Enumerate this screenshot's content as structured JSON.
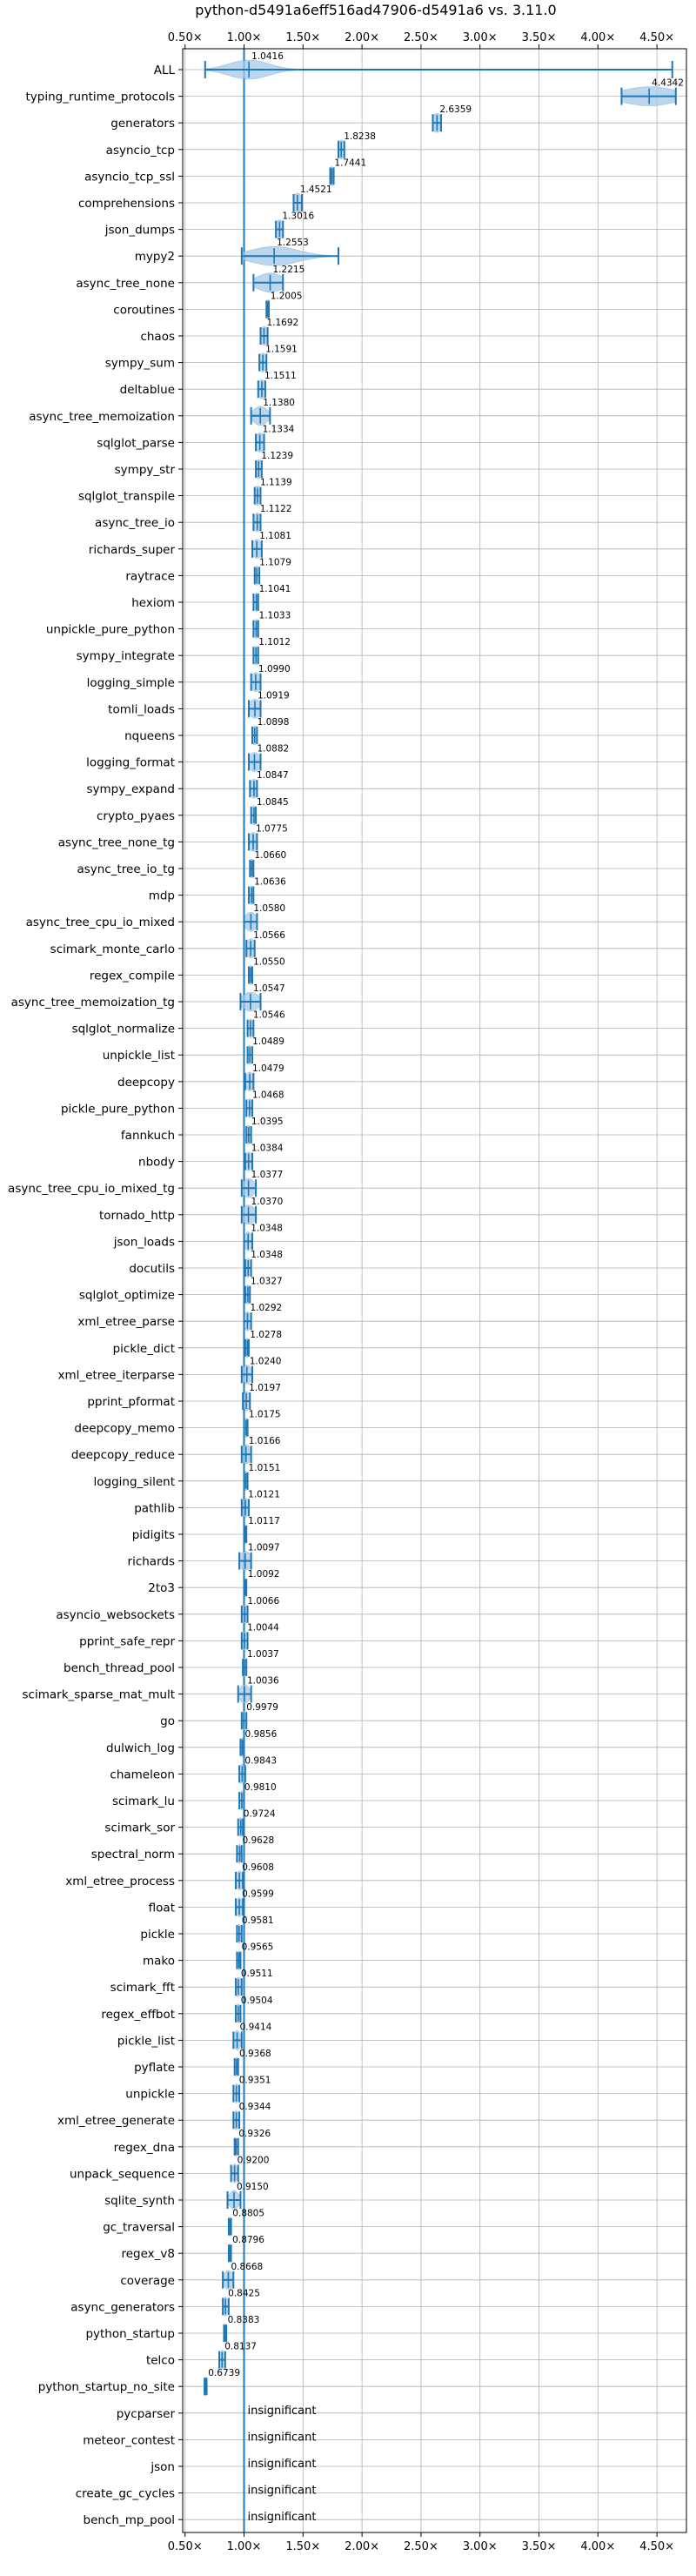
{
  "chart_data": {
    "type": "violin",
    "title": "python-d5491a6eff516ad47906-d5491a6 vs. 3.11.0",
    "xlim": [
      0.48,
      4.75
    ],
    "x_ticks": [
      0.5,
      1.0,
      1.5,
      2.0,
      2.5,
      3.0,
      3.5,
      4.0,
      4.5
    ],
    "x_tick_labels": [
      "0.50×",
      "1.00×",
      "1.50×",
      "2.00×",
      "2.50×",
      "3.00×",
      "3.50×",
      "4.00×",
      "4.50×"
    ],
    "reference_line": 1.0,
    "grid": true,
    "colors": {
      "line": "#1f77b4",
      "violin": "#a6c8e8",
      "grid": "#b0b0b0",
      "axis": "#000000"
    },
    "benchmarks": [
      {
        "name": "ALL",
        "label": "1.0416",
        "median": 1.0416,
        "min": 0.67,
        "max": 4.63,
        "spread": 0.17
      },
      {
        "name": "typing_runtime_protocols",
        "label": "4.4342",
        "median": 4.4342,
        "min": 4.2,
        "max": 4.66,
        "spread": 0.23
      },
      {
        "name": "generators",
        "label": "2.6359",
        "median": 2.6359,
        "min": 2.6,
        "max": 2.67,
        "spread": 0.04
      },
      {
        "name": "asyncio_tcp",
        "label": "1.8238",
        "median": 1.8238,
        "min": 1.8,
        "max": 1.85,
        "spread": 0.03
      },
      {
        "name": "asyncio_tcp_ssl",
        "label": "1.7441",
        "median": 1.7441,
        "min": 1.73,
        "max": 1.76,
        "spread": 0.02
      },
      {
        "name": "comprehensions",
        "label": "1.4521",
        "median": 1.4521,
        "min": 1.42,
        "max": 1.49,
        "spread": 0.04
      },
      {
        "name": "json_dumps",
        "label": "1.3016",
        "median": 1.3016,
        "min": 1.27,
        "max": 1.33,
        "spread": 0.04
      },
      {
        "name": "mypy2",
        "label": "1.2553",
        "median": 1.2553,
        "min": 0.98,
        "max": 1.8,
        "spread": 0.2
      },
      {
        "name": "async_tree_none",
        "label": "1.2215",
        "median": 1.2215,
        "min": 1.08,
        "max": 1.33,
        "spread": 0.11
      },
      {
        "name": "coroutines",
        "label": "1.2005",
        "median": 1.2005,
        "min": 1.19,
        "max": 1.21,
        "spread": 0.02
      },
      {
        "name": "chaos",
        "label": "1.1692",
        "median": 1.1692,
        "min": 1.14,
        "max": 1.2,
        "spread": 0.03
      },
      {
        "name": "sympy_sum",
        "label": "1.1591",
        "median": 1.1591,
        "min": 1.13,
        "max": 1.19,
        "spread": 0.03
      },
      {
        "name": "deltablue",
        "label": "1.1511",
        "median": 1.1511,
        "min": 1.12,
        "max": 1.18,
        "spread": 0.03
      },
      {
        "name": "async_tree_memoization",
        "label": "1.1380",
        "median": 1.138,
        "min": 1.06,
        "max": 1.22,
        "spread": 0.06
      },
      {
        "name": "sqlglot_parse",
        "label": "1.1334",
        "median": 1.1334,
        "min": 1.1,
        "max": 1.17,
        "spread": 0.04
      },
      {
        "name": "sympy_str",
        "label": "1.1239",
        "median": 1.1239,
        "min": 1.1,
        "max": 1.15,
        "spread": 0.03
      },
      {
        "name": "sqlglot_transpile",
        "label": "1.1139",
        "median": 1.1139,
        "min": 1.09,
        "max": 1.14,
        "spread": 0.04
      },
      {
        "name": "async_tree_io",
        "label": "1.1122",
        "median": 1.1122,
        "min": 1.08,
        "max": 1.14,
        "spread": 0.03
      },
      {
        "name": "richards_super",
        "label": "1.1081",
        "median": 1.1081,
        "min": 1.07,
        "max": 1.15,
        "spread": 0.04
      },
      {
        "name": "raytrace",
        "label": "1.1079",
        "median": 1.1079,
        "min": 1.09,
        "max": 1.13,
        "spread": 0.02
      },
      {
        "name": "hexiom",
        "label": "1.1041",
        "median": 1.1041,
        "min": 1.08,
        "max": 1.12,
        "spread": 0.02
      },
      {
        "name": "unpickle_pure_python",
        "label": "1.1033",
        "median": 1.1033,
        "min": 1.08,
        "max": 1.12,
        "spread": 0.02
      },
      {
        "name": "sympy_integrate",
        "label": "1.1012",
        "median": 1.1012,
        "min": 1.08,
        "max": 1.12,
        "spread": 0.02
      },
      {
        "name": "logging_simple",
        "label": "1.0990",
        "median": 1.099,
        "min": 1.06,
        "max": 1.14,
        "spread": 0.04
      },
      {
        "name": "tomli_loads",
        "label": "1.0919",
        "median": 1.0919,
        "min": 1.04,
        "max": 1.14,
        "spread": 0.05
      },
      {
        "name": "nqueens",
        "label": "1.0898",
        "median": 1.0898,
        "min": 1.07,
        "max": 1.11,
        "spread": 0.03
      },
      {
        "name": "logging_format",
        "label": "1.0882",
        "median": 1.0882,
        "min": 1.04,
        "max": 1.14,
        "spread": 0.05
      },
      {
        "name": "sympy_expand",
        "label": "1.0847",
        "median": 1.0847,
        "min": 1.05,
        "max": 1.11,
        "spread": 0.03
      },
      {
        "name": "crypto_pyaes",
        "label": "1.0845",
        "median": 1.0845,
        "min": 1.06,
        "max": 1.1,
        "spread": 0.02
      },
      {
        "name": "async_tree_none_tg",
        "label": "1.0775",
        "median": 1.0775,
        "min": 1.04,
        "max": 1.11,
        "spread": 0.04
      },
      {
        "name": "async_tree_io_tg",
        "label": "1.0660",
        "median": 1.066,
        "min": 1.05,
        "max": 1.08,
        "spread": 0.02
      },
      {
        "name": "mdp",
        "label": "1.0636",
        "median": 1.0636,
        "min": 1.04,
        "max": 1.08,
        "spread": 0.02
      },
      {
        "name": "async_tree_cpu_io_mixed",
        "label": "1.0580",
        "median": 1.058,
        "min": 1.0,
        "max": 1.11,
        "spread": 0.05
      },
      {
        "name": "scimark_monte_carlo",
        "label": "1.0566",
        "median": 1.0566,
        "min": 1.02,
        "max": 1.09,
        "spread": 0.04
      },
      {
        "name": "regex_compile",
        "label": "1.0550",
        "median": 1.055,
        "min": 1.04,
        "max": 1.07,
        "spread": 0.02
      },
      {
        "name": "async_tree_memoization_tg",
        "label": "1.0547",
        "median": 1.0547,
        "min": 0.97,
        "max": 1.14,
        "spread": 0.07
      },
      {
        "name": "sqlglot_normalize",
        "label": "1.0546",
        "median": 1.0546,
        "min": 1.03,
        "max": 1.08,
        "spread": 0.02
      },
      {
        "name": "unpickle_list",
        "label": "1.0489",
        "median": 1.0489,
        "min": 1.03,
        "max": 1.07,
        "spread": 0.02
      },
      {
        "name": "deepcopy",
        "label": "1.0479",
        "median": 1.0479,
        "min": 1.01,
        "max": 1.08,
        "spread": 0.03
      },
      {
        "name": "pickle_pure_python",
        "label": "1.0468",
        "median": 1.0468,
        "min": 1.02,
        "max": 1.07,
        "spread": 0.02
      },
      {
        "name": "fannkuch",
        "label": "1.0395",
        "median": 1.0395,
        "min": 1.02,
        "max": 1.06,
        "spread": 0.02
      },
      {
        "name": "nbody",
        "label": "1.0384",
        "median": 1.0384,
        "min": 1.01,
        "max": 1.07,
        "spread": 0.03
      },
      {
        "name": "async_tree_cpu_io_mixed_tg",
        "label": "1.0377",
        "median": 1.0377,
        "min": 0.98,
        "max": 1.1,
        "spread": 0.05
      },
      {
        "name": "tornado_http",
        "label": "1.0370",
        "median": 1.037,
        "min": 0.98,
        "max": 1.1,
        "spread": 0.06
      },
      {
        "name": "json_loads",
        "label": "1.0348",
        "median": 1.0348,
        "min": 1.0,
        "max": 1.07,
        "spread": 0.03
      },
      {
        "name": "docutils",
        "label": "1.0348",
        "median": 1.0348,
        "min": 1.01,
        "max": 1.06,
        "spread": 0.02
      },
      {
        "name": "sqlglot_optimize",
        "label": "1.0327",
        "median": 1.0327,
        "min": 1.01,
        "max": 1.05,
        "spread": 0.02
      },
      {
        "name": "xml_etree_parse",
        "label": "1.0292",
        "median": 1.0292,
        "min": 1.0,
        "max": 1.06,
        "spread": 0.03
      },
      {
        "name": "pickle_dict",
        "label": "1.0278",
        "median": 1.0278,
        "min": 1.01,
        "max": 1.04,
        "spread": 0.02
      },
      {
        "name": "xml_etree_iterparse",
        "label": "1.0240",
        "median": 1.024,
        "min": 0.98,
        "max": 1.07,
        "spread": 0.04
      },
      {
        "name": "pprint_pformat",
        "label": "1.0197",
        "median": 1.0197,
        "min": 0.99,
        "max": 1.05,
        "spread": 0.03
      },
      {
        "name": "deepcopy_memo",
        "label": "1.0175",
        "median": 1.0175,
        "min": 1.0,
        "max": 1.03,
        "spread": 0.02
      },
      {
        "name": "deepcopy_reduce",
        "label": "1.0166",
        "median": 1.0166,
        "min": 0.98,
        "max": 1.06,
        "spread": 0.04
      },
      {
        "name": "logging_silent",
        "label": "1.0151",
        "median": 1.0151,
        "min": 1.0,
        "max": 1.03,
        "spread": 0.02
      },
      {
        "name": "pathlib",
        "label": "1.0121",
        "median": 1.0121,
        "min": 0.98,
        "max": 1.04,
        "spread": 0.03
      },
      {
        "name": "pidigits",
        "label": "1.0117",
        "median": 1.0117,
        "min": 1.0,
        "max": 1.02,
        "spread": 0.01
      },
      {
        "name": "richards",
        "label": "1.0097",
        "median": 1.0097,
        "min": 0.96,
        "max": 1.06,
        "spread": 0.05
      },
      {
        "name": "2to3",
        "label": "1.0092",
        "median": 1.0092,
        "min": 1.0,
        "max": 1.02,
        "spread": 0.01
      },
      {
        "name": "asyncio_websockets",
        "label": "1.0066",
        "median": 1.0066,
        "min": 0.98,
        "max": 1.03,
        "spread": 0.03
      },
      {
        "name": "pprint_safe_repr",
        "label": "1.0044",
        "median": 1.0044,
        "min": 0.98,
        "max": 1.03,
        "spread": 0.03
      },
      {
        "name": "bench_thread_pool",
        "label": "1.0037",
        "median": 1.0037,
        "min": 0.99,
        "max": 1.02,
        "spread": 0.02
      },
      {
        "name": "scimark_sparse_mat_mult",
        "label": "1.0036",
        "median": 1.0036,
        "min": 0.95,
        "max": 1.06,
        "spread": 0.04
      },
      {
        "name": "go",
        "label": "0.9979",
        "median": 0.9979,
        "min": 0.98,
        "max": 1.02,
        "spread": 0.02
      },
      {
        "name": "dulwich_log",
        "label": "0.9856",
        "median": 0.9856,
        "min": 0.97,
        "max": 1.0,
        "spread": 0.02
      },
      {
        "name": "chameleon",
        "label": "0.9843",
        "median": 0.9843,
        "min": 0.96,
        "max": 1.01,
        "spread": 0.03
      },
      {
        "name": "scimark_lu",
        "label": "0.9810",
        "median": 0.981,
        "min": 0.96,
        "max": 1.0,
        "spread": 0.02
      },
      {
        "name": "scimark_sor",
        "label": "0.9724",
        "median": 0.9724,
        "min": 0.95,
        "max": 0.99,
        "spread": 0.02
      },
      {
        "name": "spectral_norm",
        "label": "0.9628",
        "median": 0.9628,
        "min": 0.94,
        "max": 0.98,
        "spread": 0.02
      },
      {
        "name": "xml_etree_process",
        "label": "0.9608",
        "median": 0.9608,
        "min": 0.93,
        "max": 0.99,
        "spread": 0.03
      },
      {
        "name": "float",
        "label": "0.9599",
        "median": 0.9599,
        "min": 0.93,
        "max": 0.99,
        "spread": 0.03
      },
      {
        "name": "pickle",
        "label": "0.9581",
        "median": 0.9581,
        "min": 0.94,
        "max": 0.98,
        "spread": 0.02
      },
      {
        "name": "mako",
        "label": "0.9565",
        "median": 0.9565,
        "min": 0.94,
        "max": 0.97,
        "spread": 0.01
      },
      {
        "name": "scimark_fft",
        "label": "0.9511",
        "median": 0.9511,
        "min": 0.93,
        "max": 0.98,
        "spread": 0.03
      },
      {
        "name": "regex_effbot",
        "label": "0.9504",
        "median": 0.9504,
        "min": 0.93,
        "max": 0.97,
        "spread": 0.02
      },
      {
        "name": "pickle_list",
        "label": "0.9414",
        "median": 0.9414,
        "min": 0.91,
        "max": 0.98,
        "spread": 0.03
      },
      {
        "name": "pyflate",
        "label": "0.9368",
        "median": 0.9368,
        "min": 0.92,
        "max": 0.95,
        "spread": 0.02
      },
      {
        "name": "unpickle",
        "label": "0.9351",
        "median": 0.9351,
        "min": 0.91,
        "max": 0.96,
        "spread": 0.02
      },
      {
        "name": "xml_etree_generate",
        "label": "0.9344",
        "median": 0.9344,
        "min": 0.91,
        "max": 0.96,
        "spread": 0.02
      },
      {
        "name": "regex_dna",
        "label": "0.9326",
        "median": 0.9326,
        "min": 0.92,
        "max": 0.95,
        "spread": 0.01
      },
      {
        "name": "unpack_sequence",
        "label": "0.9200",
        "median": 0.92,
        "min": 0.89,
        "max": 0.95,
        "spread": 0.02
      },
      {
        "name": "sqlite_synth",
        "label": "0.9150",
        "median": 0.915,
        "min": 0.86,
        "max": 0.97,
        "spread": 0.04
      },
      {
        "name": "gc_traversal",
        "label": "0.8805",
        "median": 0.8805,
        "min": 0.87,
        "max": 0.89,
        "spread": 0.01
      },
      {
        "name": "regex_v8",
        "label": "0.8796",
        "median": 0.8796,
        "min": 0.87,
        "max": 0.89,
        "spread": 0.01
      },
      {
        "name": "coverage",
        "label": "0.8668",
        "median": 0.8668,
        "min": 0.82,
        "max": 0.91,
        "spread": 0.04
      },
      {
        "name": "async_generators",
        "label": "0.8425",
        "median": 0.8425,
        "min": 0.82,
        "max": 0.87,
        "spread": 0.02
      },
      {
        "name": "python_startup",
        "label": "0.8383",
        "median": 0.8383,
        "min": 0.83,
        "max": 0.85,
        "spread": 0.01
      },
      {
        "name": "telco",
        "label": "0.8137",
        "median": 0.8137,
        "min": 0.79,
        "max": 0.84,
        "spread": 0.02
      },
      {
        "name": "python_startup_no_site",
        "label": "0.6739",
        "median": 0.6739,
        "min": 0.665,
        "max": 0.683,
        "spread": 0.01
      },
      {
        "name": "pycparser",
        "label": "insignificant",
        "insignificant": true
      },
      {
        "name": "meteor_contest",
        "label": "insignificant",
        "insignificant": true
      },
      {
        "name": "json",
        "label": "insignificant",
        "insignificant": true
      },
      {
        "name": "create_gc_cycles",
        "label": "insignificant",
        "insignificant": true
      },
      {
        "name": "bench_mp_pool",
        "label": "insignificant",
        "insignificant": true
      }
    ]
  }
}
